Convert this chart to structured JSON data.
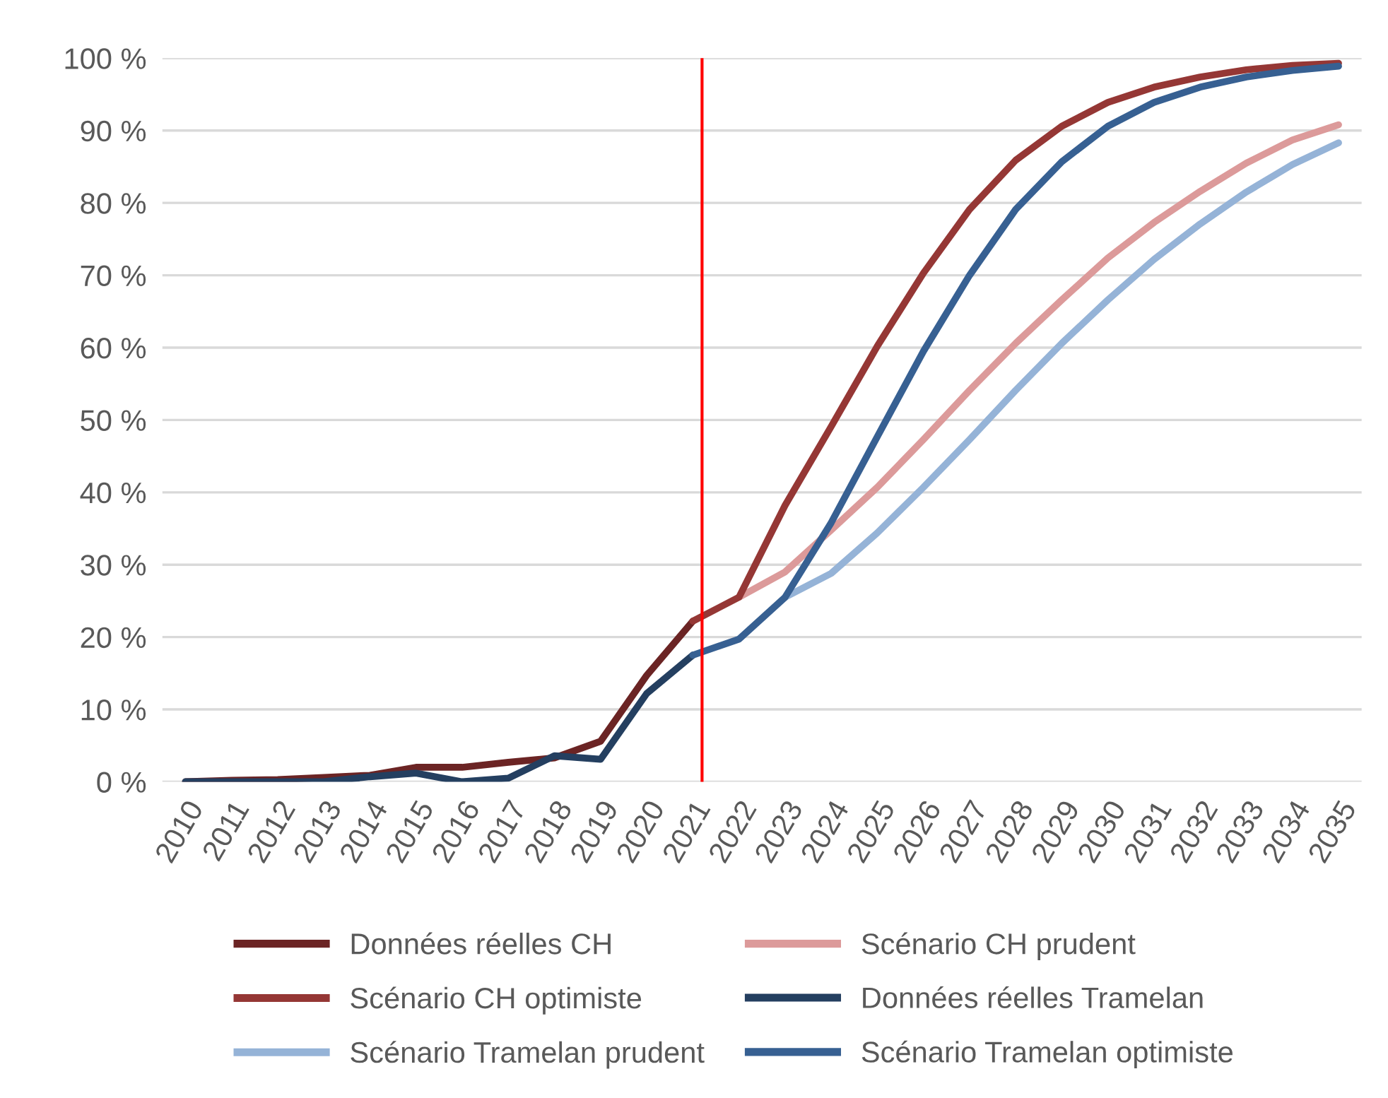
{
  "chart_data": {
    "type": "line",
    "x": [
      2010,
      2011,
      2012,
      2013,
      2014,
      2015,
      2016,
      2017,
      2018,
      2019,
      2020,
      2021
    ],
    "xlim": [
      2009.5,
      2035.5
    ],
    "xticks": [
      2010,
      2011,
      2012,
      2013,
      2014,
      2015,
      2016,
      2017,
      2018,
      2019,
      2020,
      2021,
      2022,
      2023,
      2024,
      2025,
      2026,
      2027,
      2028,
      2029,
      2030,
      2031,
      2032,
      2033,
      2034,
      2035
    ],
    "ylim": [
      0,
      100
    ],
    "yticks": [
      {
        "value": 0,
        "label": "0 %"
      },
      {
        "value": 10,
        "label": "10 %"
      },
      {
        "value": 20,
        "label": "20 %"
      },
      {
        "value": 30,
        "label": "30 %"
      },
      {
        "value": 40,
        "label": "40 %"
      },
      {
        "value": 50,
        "label": "50 %"
      },
      {
        "value": 60,
        "label": "60 %"
      },
      {
        "value": 70,
        "label": "70 %"
      },
      {
        "value": 80,
        "label": "80 %"
      },
      {
        "value": 90,
        "label": "90 %"
      },
      {
        "value": 100,
        "label": "100 %"
      }
    ],
    "grid": "y",
    "legend": "bottom",
    "marker": "none",
    "line_style": "solid",
    "ref_lines": [
      {
        "axis": "x",
        "value": 2021.2,
        "label": null,
        "color": "#ff0000"
      }
    ],
    "series": [
      {
        "name": "Données réelles CH",
        "color": "#6b2424",
        "values": [
          0,
          0.2,
          0.3,
          0.6,
          0.9,
          2.0,
          2.0,
          2.7,
          3.3,
          5.6,
          14.7,
          22.2
        ]
      },
      {
        "name": "Scénario CH prudent",
        "color": "#dc9a9a",
        "x": [
          2022,
          2023,
          2024,
          2025,
          2026,
          2027,
          2028,
          2029,
          2030,
          2031,
          2032,
          2033,
          2034,
          2035
        ],
        "values": [
          25.5,
          29.0,
          34.8,
          40.7,
          47.3,
          54.1,
          60.6,
          66.6,
          72.4,
          77.3,
          81.6,
          85.5,
          88.7,
          90.8
        ]
      },
      {
        "name": "Scénario CH optimiste",
        "color": "#953735",
        "x": [
          2021,
          2022,
          2023,
          2024,
          2025,
          2026,
          2027,
          2028,
          2029,
          2030,
          2031,
          2032,
          2033,
          2034,
          2035
        ],
        "values": [
          22.2,
          25.5,
          38.2,
          49.1,
          60.2,
          70.3,
          79.1,
          85.9,
          90.6,
          93.9,
          96.0,
          97.4,
          98.4,
          99.0,
          99.3
        ]
      },
      {
        "name": "Données réelles Tramelan",
        "color": "#243f60",
        "values": [
          0,
          0,
          0,
          0,
          0.7,
          1.2,
          0,
          0.5,
          3.6,
          3.1,
          12.2,
          17.5
        ]
      },
      {
        "name": "Scénario Tramelan prudent",
        "color": "#95b3d7",
        "x": [
          2023,
          2024,
          2025,
          2026,
          2027,
          2028,
          2029,
          2030,
          2031,
          2032,
          2033,
          2034,
          2035
        ],
        "values": [
          25.5,
          28.8,
          34.4,
          40.7,
          47.3,
          54.1,
          60.6,
          66.6,
          72.2,
          77.1,
          81.5,
          85.3,
          88.3
        ]
      },
      {
        "name": "Scénario Tramelan optimiste",
        "color": "#376092",
        "x": [
          2021,
          2022,
          2023,
          2024,
          2025,
          2026,
          2027,
          2028,
          2029,
          2030,
          2031,
          2032,
          2033,
          2034,
          2035
        ],
        "values": [
          17.5,
          19.7,
          25.5,
          35.8,
          47.7,
          59.5,
          70.0,
          79.1,
          85.7,
          90.6,
          93.9,
          96.0,
          97.4,
          98.3,
          98.9
        ]
      }
    ]
  }
}
